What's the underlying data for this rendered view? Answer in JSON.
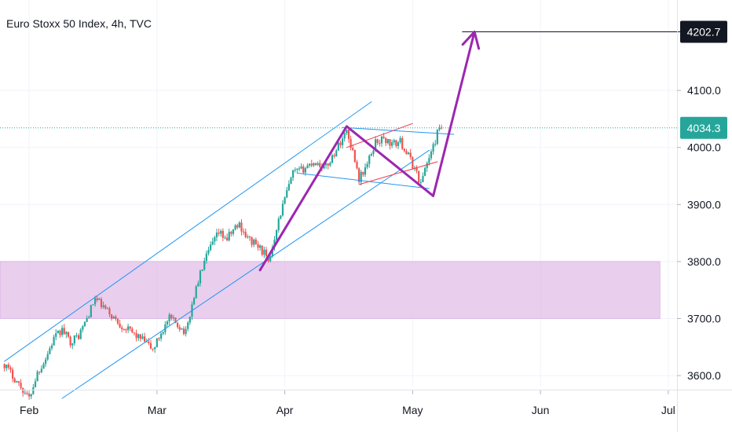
{
  "chart_title": "Euro Stoxx 50 Index, 4h, TVC",
  "price_axis": {
    "ticks": [
      {
        "value": 3600,
        "label": "3600.0"
      },
      {
        "value": 3700,
        "label": "3700.0"
      },
      {
        "value": 3800,
        "label": "3800.0"
      },
      {
        "value": 3900,
        "label": "3900.0"
      },
      {
        "value": 4000,
        "label": "4000.0"
      },
      {
        "value": 4100,
        "label": "4100.0"
      }
    ],
    "current_price": {
      "value": 4034.3,
      "label": "4034.3",
      "color": "#26a69a"
    },
    "target_price": {
      "value": 4202.7,
      "label": "4202.7",
      "color": "#131722"
    }
  },
  "time_axis": {
    "ticks": [
      {
        "t": 6,
        "label": "Feb"
      },
      {
        "t": 37,
        "label": "Mar"
      },
      {
        "t": 68,
        "label": "Apr"
      },
      {
        "t": 99,
        "label": "May"
      },
      {
        "t": 130,
        "label": "Jun"
      },
      {
        "t": 161,
        "label": "Jul"
      }
    ]
  },
  "colors": {
    "up": "#26a69a",
    "down": "#ef5350",
    "channel": "#2196f3",
    "projection": "#9c27b0",
    "wedge": "#f23645",
    "zone": "#e1bee7",
    "grid": "#f0f3fa"
  },
  "chart_data": {
    "type": "candlestick",
    "title": "Euro Stoxx 50 Index, 4h, TVC",
    "xlabel": "",
    "ylabel": "",
    "ylim": [
      3570,
      4260
    ],
    "x_axis_months": [
      "Feb",
      "Mar",
      "Apr",
      "May",
      "Jun",
      "Jul"
    ],
    "price_path": [
      [
        0,
        3620
      ],
      [
        3,
        3590
      ],
      [
        6,
        3560
      ],
      [
        8,
        3605
      ],
      [
        10,
        3630
      ],
      [
        12,
        3665
      ],
      [
        14,
        3680
      ],
      [
        16,
        3660
      ],
      [
        18,
        3670
      ],
      [
        20,
        3700
      ],
      [
        22,
        3735
      ],
      [
        24,
        3720
      ],
      [
        26,
        3705
      ],
      [
        28,
        3690
      ],
      [
        30,
        3680
      ],
      [
        32,
        3670
      ],
      [
        34,
        3660
      ],
      [
        36,
        3645
      ],
      [
        38,
        3675
      ],
      [
        40,
        3700
      ],
      [
        42,
        3690
      ],
      [
        44,
        3675
      ],
      [
        46,
        3740
      ],
      [
        48,
        3790
      ],
      [
        50,
        3825
      ],
      [
        52,
        3850
      ],
      [
        54,
        3840
      ],
      [
        56,
        3860
      ],
      [
        57,
        3865
      ],
      [
        59,
        3840
      ],
      [
        61,
        3830
      ],
      [
        63,
        3815
      ],
      [
        64,
        3795
      ],
      [
        66,
        3860
      ],
      [
        68,
        3910
      ],
      [
        70,
        3955
      ],
      [
        72,
        3960
      ],
      [
        75,
        3975
      ],
      [
        78,
        3965
      ],
      [
        80,
        3990
      ],
      [
        83,
        4030
      ],
      [
        85,
        3980
      ],
      [
        86,
        3945
      ],
      [
        88,
        3970
      ],
      [
        90,
        4010
      ],
      [
        92,
        4015
      ],
      [
        94,
        4005
      ],
      [
        96,
        4010
      ],
      [
        98,
        3985
      ],
      [
        100,
        3955
      ],
      [
        101,
        3935
      ],
      [
        102,
        3965
      ],
      [
        104,
        4000
      ],
      [
        105,
        4025
      ],
      [
        106,
        4034.3
      ]
    ],
    "drawings": {
      "support_zone": [
        3700,
        3800
      ],
      "ascending_channel": {
        "upper": [
          [
            0,
            3625
          ],
          [
            89,
            4080
          ]
        ],
        "lower": [
          [
            14,
            3560
          ],
          [
            103,
            3995
          ]
        ]
      },
      "flag_channel": {
        "upper": [
          [
            82,
            4035
          ],
          [
            109,
            4023
          ]
        ],
        "lower": [
          [
            71,
            3955
          ],
          [
            103,
            3928
          ]
        ]
      },
      "wedge": {
        "upper": [
          [
            83,
            4000
          ],
          [
            99,
            4042
          ]
        ],
        "lower": [
          [
            86,
            3935
          ],
          [
            105,
            3975
          ]
        ]
      },
      "projection_path": [
        [
          62,
          3785
        ],
        [
          83,
          4037
        ],
        [
          104,
          3915
        ],
        [
          114,
          4202.7
        ]
      ],
      "target_level": 4202.7
    }
  }
}
